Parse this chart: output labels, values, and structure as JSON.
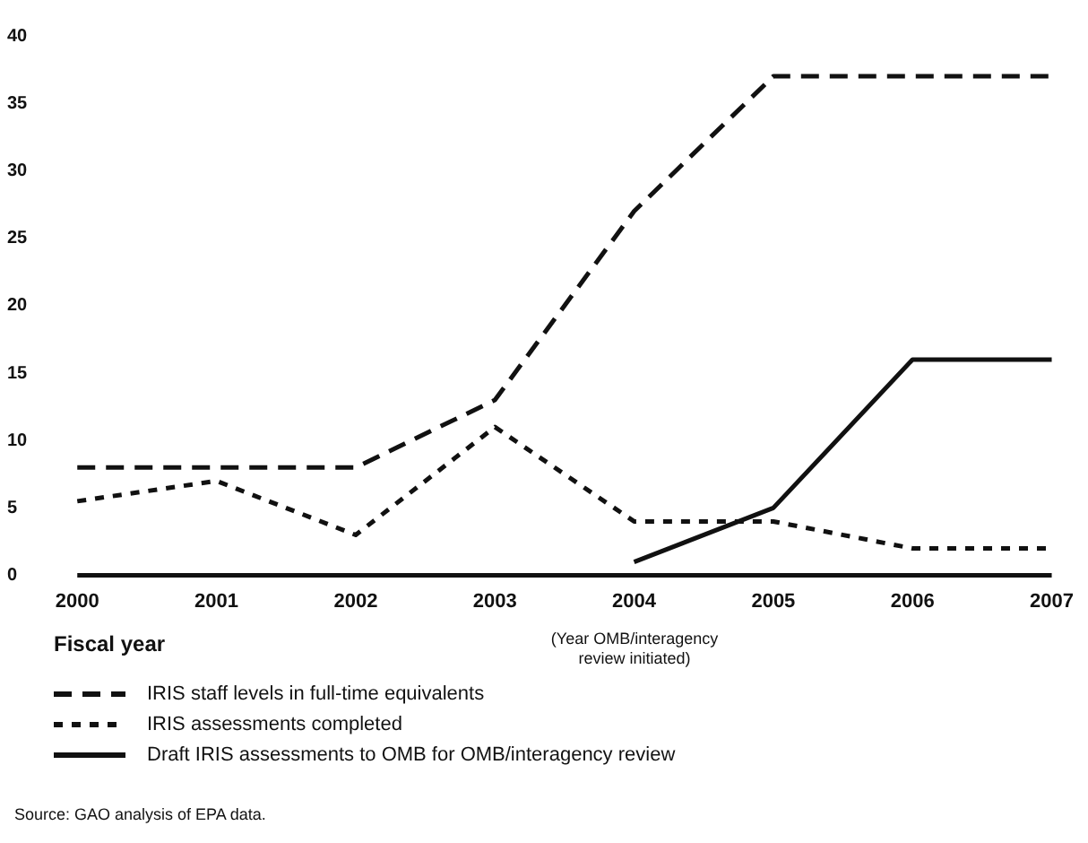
{
  "chart_data": {
    "type": "line",
    "xlabel": "Fiscal year",
    "categories": [
      "2000",
      "2001",
      "2002",
      "2003",
      "2004",
      "2005",
      "2006",
      "2007"
    ],
    "series": [
      {
        "name": "IRIS staff levels in full-time equivalents",
        "color": "#111111",
        "line_style": "dashed",
        "values": [
          8,
          8,
          8,
          13,
          27,
          37,
          37,
          37
        ]
      },
      {
        "name": "IRIS assessments completed",
        "color": "#111111",
        "line_style": "dotted",
        "values": [
          5.5,
          7,
          3,
          11,
          4,
          4,
          2,
          2
        ]
      },
      {
        "name": "Draft IRIS assessments to OMB for OMB/interagency review",
        "color": "#111111",
        "line_style": "solid",
        "values": [
          null,
          null,
          null,
          null,
          1,
          5,
          16,
          16
        ]
      }
    ],
    "ylim": [
      0,
      40
    ],
    "yticks": [
      0,
      5,
      10,
      15,
      20,
      25,
      30,
      35,
      40
    ],
    "grid": false,
    "legend": "bottom",
    "marker": "none",
    "annotations": [
      "(Year OMB/interagency review initiated)",
      "Source: GAO analysis of EPA data."
    ]
  }
}
